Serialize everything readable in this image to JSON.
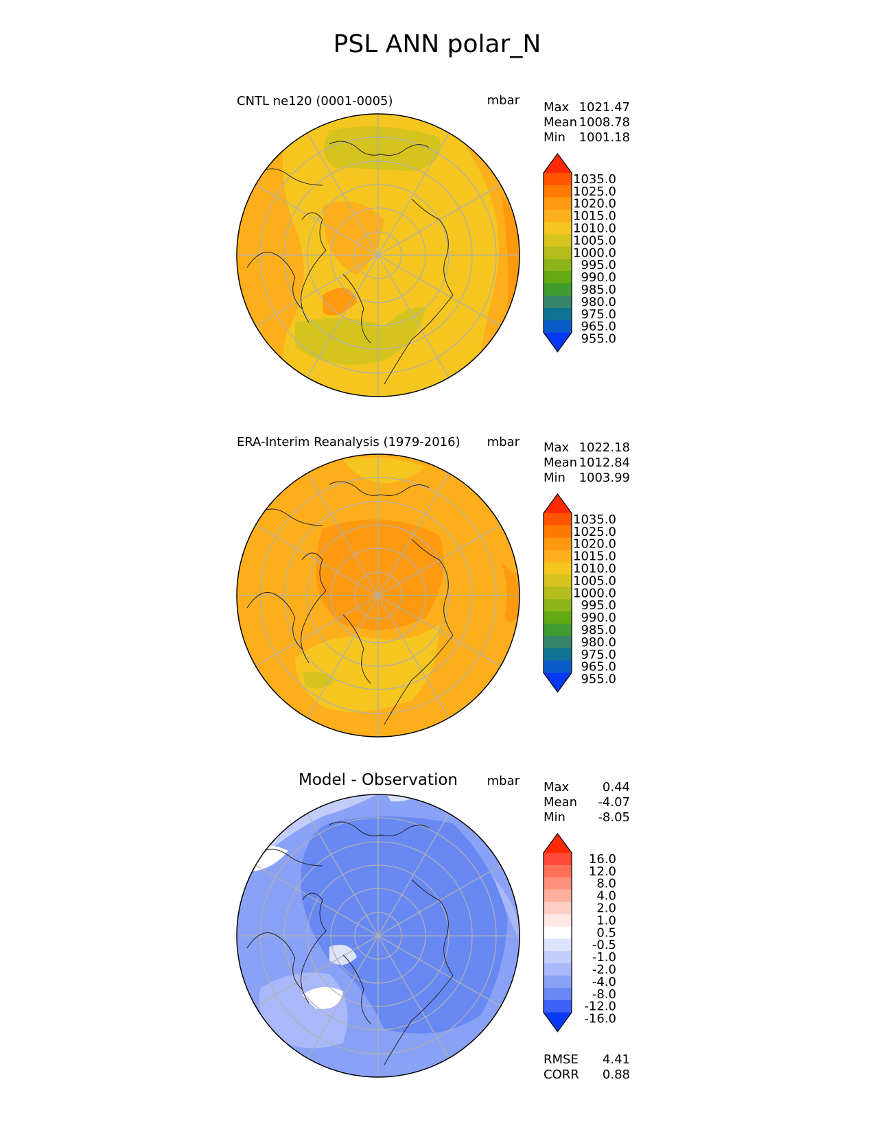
{
  "figure_title": "PSL ANN polar_N",
  "chart_data": [
    {
      "type": "heatmap",
      "projection": "north-polar-stereographic",
      "title": "CNTL ne120 (0001-0005)",
      "units": "mbar",
      "stats": {
        "max_label": "Max",
        "max": "1021.47",
        "mean_label": "Mean",
        "mean": "1008.78",
        "min_label": "Min",
        "min": "1001.18"
      },
      "colorbar": {
        "levels": [
          "1035.0",
          "1025.0",
          "1020.0",
          "1015.0",
          "1010.0",
          "1005.0",
          "1000.0",
          "995.0",
          "990.0",
          "985.0",
          "980.0",
          "975.0",
          "965.0",
          "955.0"
        ],
        "colors": [
          "#ff2a05",
          "#ff5500",
          "#ff7a00",
          "#ff9a0e",
          "#fdaf1b",
          "#f5c61f",
          "#d6c41e",
          "#b5bd1c",
          "#8db51a",
          "#63a914",
          "#3e9b30",
          "#36856a",
          "#0f7494",
          "#0b5ac9",
          "#0638f5"
        ]
      },
      "field": {
        "description": "sea level pressure, mostly 1005-1015 mbar",
        "base_color": "#f5c61f",
        "regions": [
          {
            "level": "1010-1015",
            "color": "#fdaf1b"
          },
          {
            "level": "1005-1010",
            "color": "#f5c61f"
          },
          {
            "level": "1000-1005",
            "color": "#d6c41e"
          }
        ]
      }
    },
    {
      "type": "heatmap",
      "projection": "north-polar-stereographic",
      "title": "ERA-Interim Reanalysis (1979-2016)",
      "units": "mbar",
      "stats": {
        "max_label": "Max",
        "max": "1022.18",
        "mean_label": "Mean",
        "mean": "1012.84",
        "min_label": "Min",
        "min": "1003.99"
      },
      "colorbar": {
        "levels": [
          "1035.0",
          "1025.0",
          "1020.0",
          "1015.0",
          "1010.0",
          "1005.0",
          "1000.0",
          "995.0",
          "990.0",
          "985.0",
          "980.0",
          "975.0",
          "965.0",
          "955.0"
        ],
        "colors": [
          "#ff2a05",
          "#ff5500",
          "#ff7a00",
          "#ff9a0e",
          "#fdaf1b",
          "#f5c61f",
          "#d6c41e",
          "#b5bd1c",
          "#8db51a",
          "#63a914",
          "#3e9b30",
          "#36856a",
          "#0f7494",
          "#0b5ac9",
          "#0638f5"
        ]
      },
      "field": {
        "description": "sea level pressure, mostly 1010-1020 mbar",
        "base_color": "#fdaf1b",
        "regions": [
          {
            "level": "1015-1020",
            "color": "#ff9a0e"
          },
          {
            "level": "1010-1015",
            "color": "#fdaf1b"
          },
          {
            "level": "1005-1010",
            "color": "#f5c61f"
          }
        ]
      }
    },
    {
      "type": "heatmap",
      "projection": "north-polar-stereographic",
      "title": "Model - Observation",
      "units": "mbar",
      "stats": {
        "max_label": "Max",
        "max": "0.44",
        "mean_label": "Mean",
        "mean": "-4.07",
        "min_label": "Min",
        "min": "-8.05"
      },
      "metrics": {
        "rmse_label": "RMSE",
        "rmse": "4.41",
        "corr_label": "CORR",
        "corr": "0.88"
      },
      "colorbar": {
        "levels": [
          "16.0",
          "12.0",
          "8.0",
          "4.0",
          "2.0",
          "1.0",
          "0.5",
          "-0.5",
          "-1.0",
          "-2.0",
          "-4.0",
          "-8.0",
          "-12.0",
          "-16.0"
        ],
        "colors": [
          "#ff2a05",
          "#ff4a38",
          "#ff6f5a",
          "#ff907c",
          "#fdb0a2",
          "#fdcfc4",
          "#fde8e3",
          "#ffffff",
          "#dde3fb",
          "#c3cdfa",
          "#a8b8f8",
          "#8aa2f6",
          "#6888f4",
          "#3d60f6",
          "#0638f5"
        ]
      },
      "field": {
        "description": "difference field, mostly -8 to -2 mbar",
        "base_color": "#a8b8f8",
        "regions": [
          {
            "level": "-8 to -4",
            "color": "#6888f4"
          },
          {
            "level": "-4 to -2",
            "color": "#8aa2f6"
          },
          {
            "level": "-2 to -1",
            "color": "#a8b8f8"
          },
          {
            "level": "-1 to -0.5",
            "color": "#c3cdfa"
          },
          {
            "level": "-0.5 to 0.5",
            "color": "#ffffff"
          }
        ]
      }
    }
  ]
}
